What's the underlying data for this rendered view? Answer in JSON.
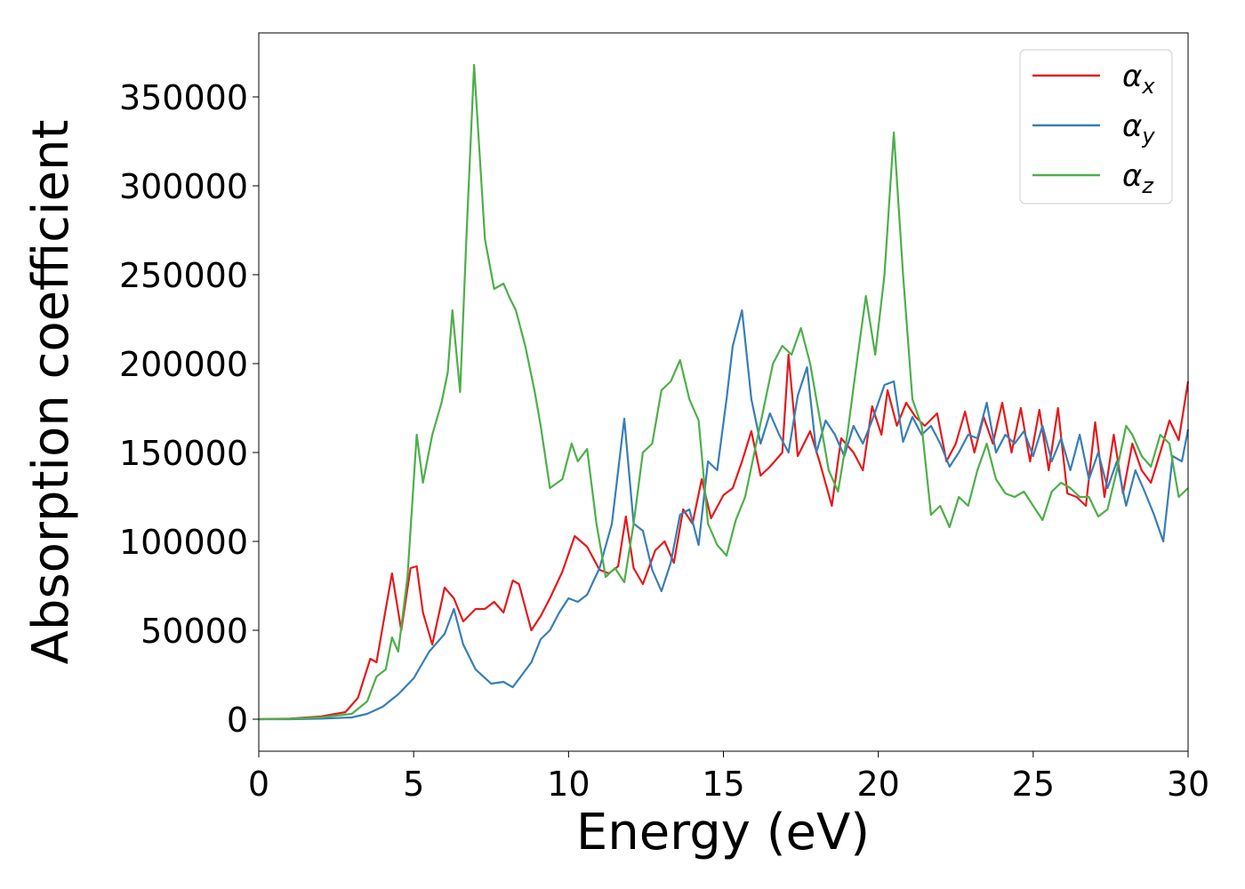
{
  "chart_data": {
    "type": "line",
    "title": "",
    "xlabel": "Energy (eV)",
    "ylabel": "Absorption coefficient",
    "xlim": [
      0,
      30
    ],
    "ylim": [
      -18000,
      386000
    ],
    "xticks": [
      0,
      5,
      10,
      15,
      20,
      25,
      30
    ],
    "xtick_labels": [
      "0",
      "5",
      "10",
      "15",
      "20",
      "25",
      "30"
    ],
    "yticks": [
      0,
      50000,
      100000,
      150000,
      200000,
      250000,
      300000,
      350000
    ],
    "ytick_labels": [
      "0",
      "50000",
      "100000",
      "150000",
      "200000",
      "250000",
      "300000",
      "350000"
    ],
    "grid": false,
    "legend_position": "top-right",
    "series": [
      {
        "name": "α_x",
        "symbol": "α",
        "subscript": "x",
        "color": "#e41a1c",
        "x": [
          0,
          1,
          2,
          2.8,
          3.2,
          3.6,
          3.8,
          4.0,
          4.3,
          4.6,
          4.9,
          5.1,
          5.3,
          5.6,
          6.0,
          6.3,
          6.6,
          7.0,
          7.3,
          7.6,
          7.9,
          8.2,
          8.4,
          8.8,
          9.1,
          9.4,
          9.8,
          10.2,
          10.6,
          11.0,
          11.3,
          11.6,
          11.85,
          12.1,
          12.4,
          12.8,
          13.1,
          13.4,
          13.7,
          14.0,
          14.3,
          14.6,
          15.0,
          15.3,
          15.6,
          15.9,
          16.2,
          16.5,
          16.9,
          17.1,
          17.4,
          17.8,
          18.1,
          18.5,
          18.8,
          19.2,
          19.5,
          19.8,
          20.1,
          20.3,
          20.6,
          20.9,
          21.2,
          21.5,
          21.9,
          22.2,
          22.5,
          22.8,
          23.1,
          23.4,
          23.7,
          24.0,
          24.3,
          24.6,
          24.9,
          25.2,
          25.5,
          25.8,
          26.1,
          26.4,
          26.7,
          27.0,
          27.3,
          27.6,
          27.9,
          28.2,
          28.5,
          28.8,
          29.1,
          29.4,
          29.7,
          30.0
        ],
        "y": [
          0,
          300,
          1500,
          4000,
          12000,
          34000,
          32000,
          52000,
          82000,
          50000,
          85000,
          86000,
          60000,
          42000,
          74000,
          68000,
          55000,
          62000,
          62000,
          66000,
          60000,
          78000,
          76000,
          50000,
          58000,
          68000,
          83000,
          103000,
          97000,
          84000,
          82000,
          86000,
          114000,
          85000,
          76000,
          95000,
          100000,
          88000,
          118000,
          110000,
          135000,
          113000,
          126000,
          130000,
          145000,
          162000,
          137000,
          142000,
          150000,
          205000,
          148000,
          162000,
          145000,
          120000,
          158000,
          150000,
          140000,
          176000,
          160000,
          185000,
          165000,
          178000,
          170000,
          165000,
          172000,
          145000,
          155000,
          173000,
          150000,
          170000,
          155000,
          178000,
          150000,
          175000,
          145000,
          174000,
          140000,
          175000,
          127000,
          125000,
          120000,
          167000,
          125000,
          160000,
          127000,
          155000,
          140000,
          133000,
          150000,
          168000,
          157000,
          190000
        ]
      },
      {
        "name": "α_y",
        "symbol": "α",
        "subscript": "y",
        "color": "#377eb8",
        "x": [
          0,
          1,
          2,
          3,
          3.5,
          4.0,
          4.5,
          5.0,
          5.5,
          6.0,
          6.3,
          6.6,
          7.0,
          7.5,
          7.9,
          8.2,
          8.5,
          8.8,
          9.1,
          9.4,
          9.7,
          10.0,
          10.3,
          10.6,
          11.0,
          11.4,
          11.8,
          12.1,
          12.4,
          12.7,
          13.0,
          13.3,
          13.6,
          13.9,
          14.2,
          14.5,
          14.8,
          15.1,
          15.3,
          15.6,
          15.9,
          16.2,
          16.5,
          16.8,
          17.1,
          17.4,
          17.7,
          18.0,
          18.3,
          18.6,
          18.9,
          19.2,
          19.5,
          19.8,
          20.2,
          20.5,
          20.8,
          21.1,
          21.4,
          21.7,
          22.0,
          22.3,
          22.6,
          22.9,
          23.2,
          23.5,
          23.8,
          24.1,
          24.4,
          24.7,
          25.0,
          25.3,
          25.6,
          25.9,
          26.2,
          26.5,
          26.8,
          27.1,
          27.4,
          27.7,
          28.0,
          28.3,
          28.6,
          28.9,
          29.2,
          29.5,
          29.8,
          30.0
        ],
        "y": [
          0,
          0,
          300,
          1000,
          3000,
          7000,
          14000,
          23000,
          38000,
          48000,
          62000,
          42000,
          28000,
          20000,
          21000,
          18000,
          25000,
          32000,
          45000,
          50000,
          60000,
          68000,
          66000,
          70000,
          85000,
          110000,
          169000,
          110000,
          106000,
          84000,
          72000,
          88000,
          115000,
          118000,
          98000,
          145000,
          140000,
          180000,
          210000,
          230000,
          180000,
          155000,
          172000,
          160000,
          150000,
          182000,
          198000,
          150000,
          168000,
          160000,
          148000,
          165000,
          155000,
          168000,
          188000,
          190000,
          156000,
          170000,
          160000,
          165000,
          155000,
          142000,
          150000,
          160000,
          158000,
          178000,
          150000,
          160000,
          155000,
          162000,
          148000,
          165000,
          145000,
          158000,
          140000,
          160000,
          135000,
          150000,
          130000,
          145000,
          120000,
          140000,
          128000,
          115000,
          100000,
          148000,
          145000,
          163000
        ]
      },
      {
        "name": "α_z",
        "symbol": "α",
        "subscript": "z",
        "color": "#4daf4a",
        "x": [
          0,
          1,
          2,
          3,
          3.5,
          3.8,
          4.1,
          4.3,
          4.5,
          4.8,
          5.1,
          5.3,
          5.6,
          5.9,
          6.1,
          6.25,
          6.5,
          6.7,
          6.95,
          7.3,
          7.6,
          7.9,
          8.1,
          8.3,
          8.6,
          8.9,
          9.1,
          9.4,
          9.8,
          10.1,
          10.3,
          10.6,
          10.9,
          11.2,
          11.5,
          11.8,
          12.1,
          12.4,
          12.7,
          13.0,
          13.3,
          13.6,
          13.9,
          14.2,
          14.5,
          14.8,
          15.1,
          15.4,
          15.7,
          16.0,
          16.3,
          16.6,
          16.9,
          17.2,
          17.5,
          17.8,
          18.1,
          18.4,
          18.7,
          19.0,
          19.3,
          19.6,
          19.9,
          20.2,
          20.5,
          20.8,
          21.1,
          21.4,
          21.7,
          22.0,
          22.3,
          22.6,
          22.9,
          23.2,
          23.5,
          23.8,
          24.1,
          24.4,
          24.7,
          25.0,
          25.3,
          25.6,
          25.9,
          26.2,
          26.5,
          26.8,
          27.1,
          27.4,
          27.7,
          28.0,
          28.2,
          28.5,
          28.8,
          29.1,
          29.4,
          29.7,
          30.0
        ],
        "y": [
          0,
          200,
          1000,
          3000,
          10000,
          24000,
          28000,
          46000,
          38000,
          80000,
          160000,
          133000,
          160000,
          178000,
          195000,
          230000,
          184000,
          270000,
          368000,
          270000,
          242000,
          245000,
          237000,
          230000,
          210000,
          185000,
          165000,
          130000,
          135000,
          155000,
          145000,
          152000,
          110000,
          80000,
          85000,
          77000,
          110000,
          150000,
          155000,
          185000,
          190000,
          202000,
          180000,
          168000,
          110000,
          98000,
          92000,
          112000,
          125000,
          150000,
          175000,
          200000,
          210000,
          205000,
          220000,
          200000,
          170000,
          140000,
          128000,
          160000,
          200000,
          238000,
          205000,
          250000,
          330000,
          250000,
          180000,
          165000,
          115000,
          120000,
          108000,
          125000,
          120000,
          140000,
          155000,
          135000,
          127000,
          125000,
          128000,
          120000,
          112000,
          128000,
          133000,
          130000,
          125000,
          125000,
          114000,
          118000,
          140000,
          165000,
          160000,
          148000,
          142000,
          160000,
          155000,
          125000,
          130000
        ]
      }
    ]
  }
}
